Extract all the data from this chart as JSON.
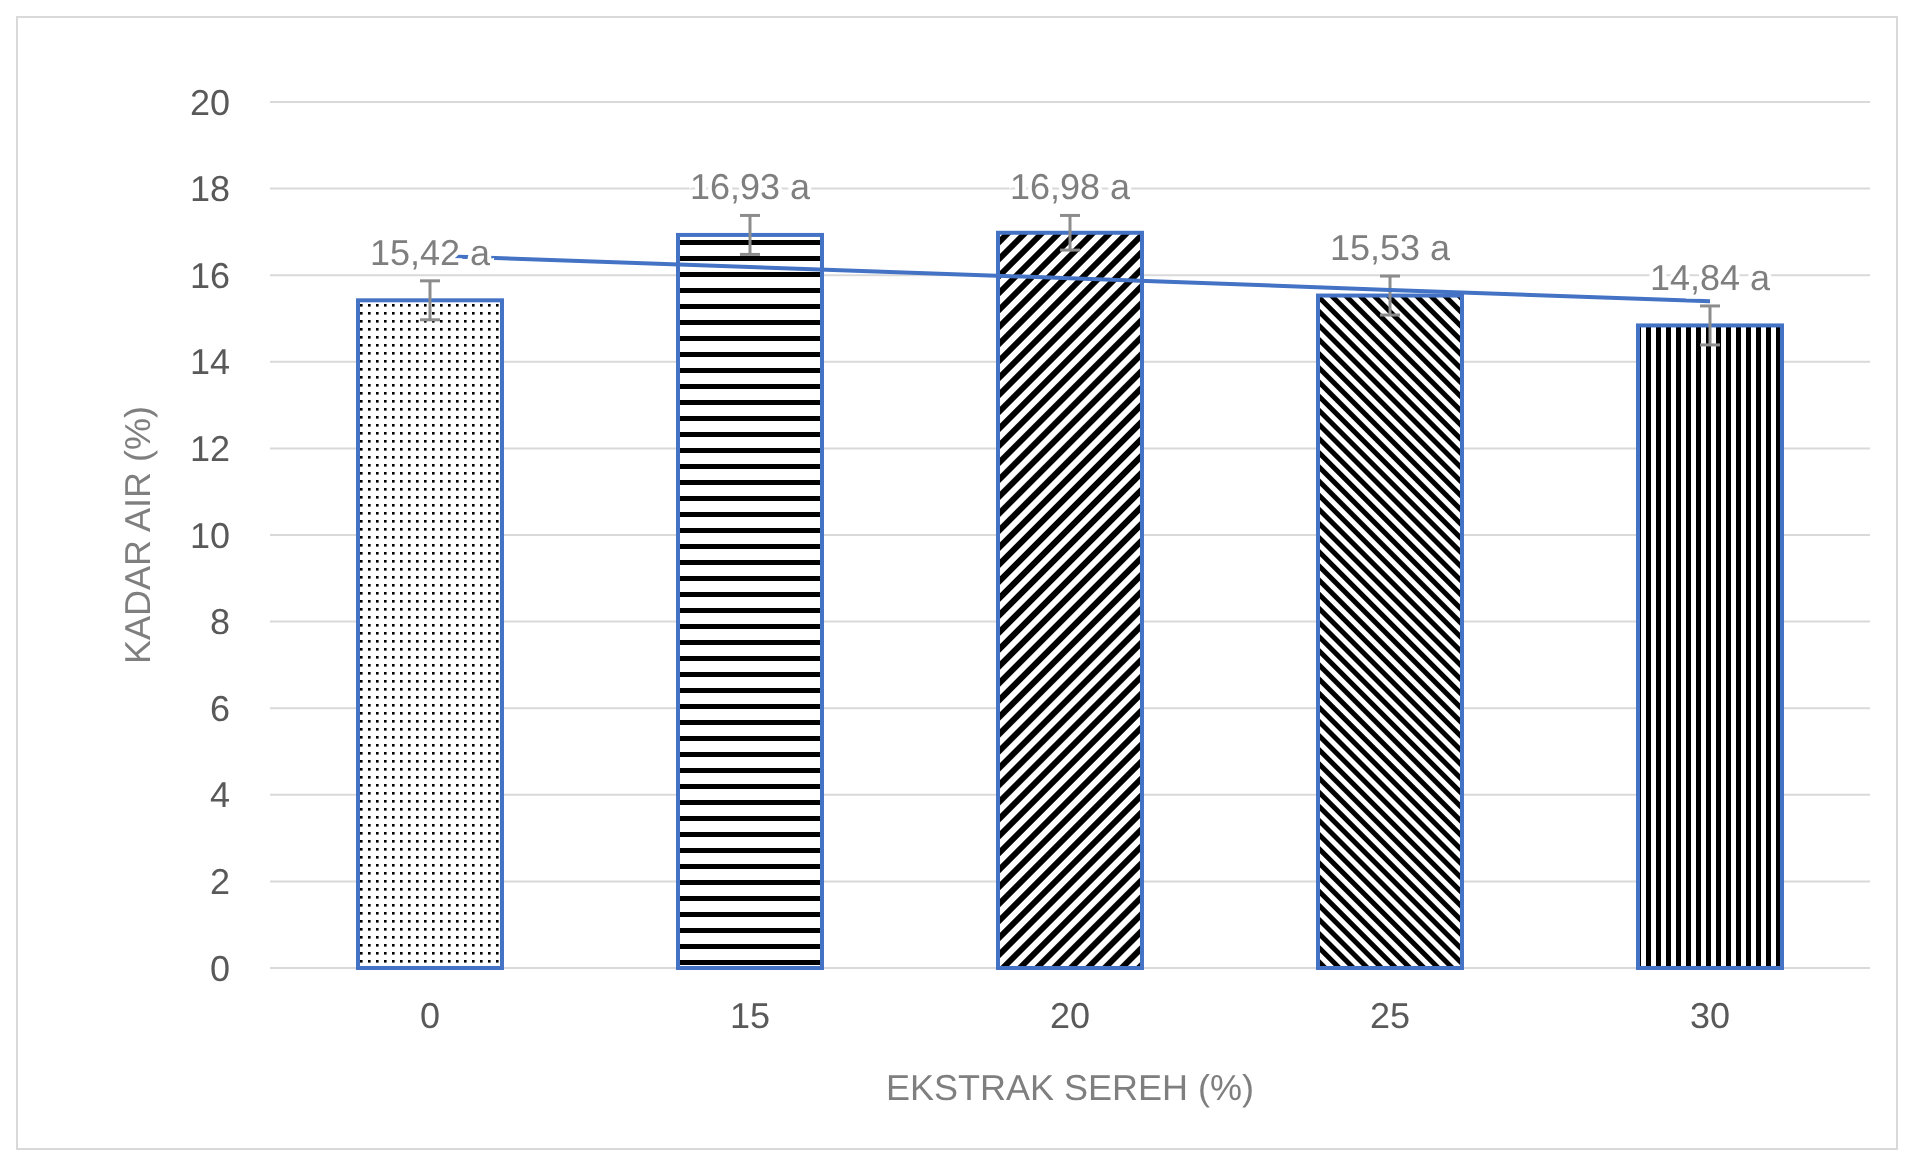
{
  "chart_data": {
    "type": "bar",
    "xlabel": "EKSTRAK SEREH (%)",
    "ylabel": "KADAR AIR (%)",
    "categories": [
      "0",
      "15",
      "20",
      "25",
      "30"
    ],
    "ylim": [
      0,
      20
    ],
    "yticks": [
      0,
      2,
      4,
      6,
      8,
      10,
      12,
      14,
      16,
      18,
      20
    ],
    "grid": "y",
    "series": [
      {
        "color": "#4472c4",
        "values": [
          15.42,
          16.93,
          16.98,
          15.53,
          14.84
        ],
        "errors": [
          0.45,
          0.45,
          0.4,
          0.45,
          0.45
        ],
        "value_labels": [
          "15,42 a",
          "16,93 a",
          "16,98 a",
          "15,53 a",
          "14,84 a"
        ]
      },
      {
        "type": "line",
        "color": "#4472c4",
        "x": [
          "0",
          "15",
          "20",
          "25",
          "30"
        ],
        "values": [
          16.45,
          16.19,
          15.93,
          15.66,
          15.4
        ]
      }
    ]
  }
}
